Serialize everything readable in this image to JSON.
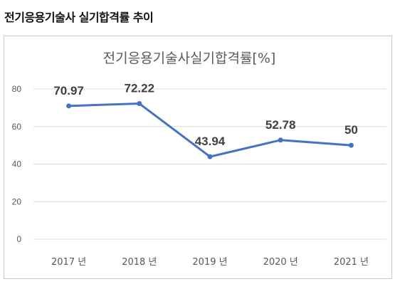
{
  "page": {
    "heading": "전기응용기술사 실기합격률 추이"
  },
  "chart_data": {
    "type": "line",
    "title": "전기응용기술사실기합격률[%]",
    "categories": [
      "2017 년",
      "2018 년",
      "2019 년",
      "2020 년",
      "2021 년"
    ],
    "values": [
      70.97,
      72.22,
      43.94,
      52.78,
      50
    ],
    "data_labels": [
      "70.97",
      "72.22",
      "43.94",
      "52.78",
      "50"
    ],
    "ylim": [
      0,
      80
    ],
    "y_ticks": [
      0,
      20,
      40,
      60,
      80
    ],
    "grid": true,
    "legend": "none",
    "colors": {
      "line": "#4472c4",
      "grid": "#d9d9d9",
      "text": "#595959",
      "label": "#404040"
    }
  }
}
